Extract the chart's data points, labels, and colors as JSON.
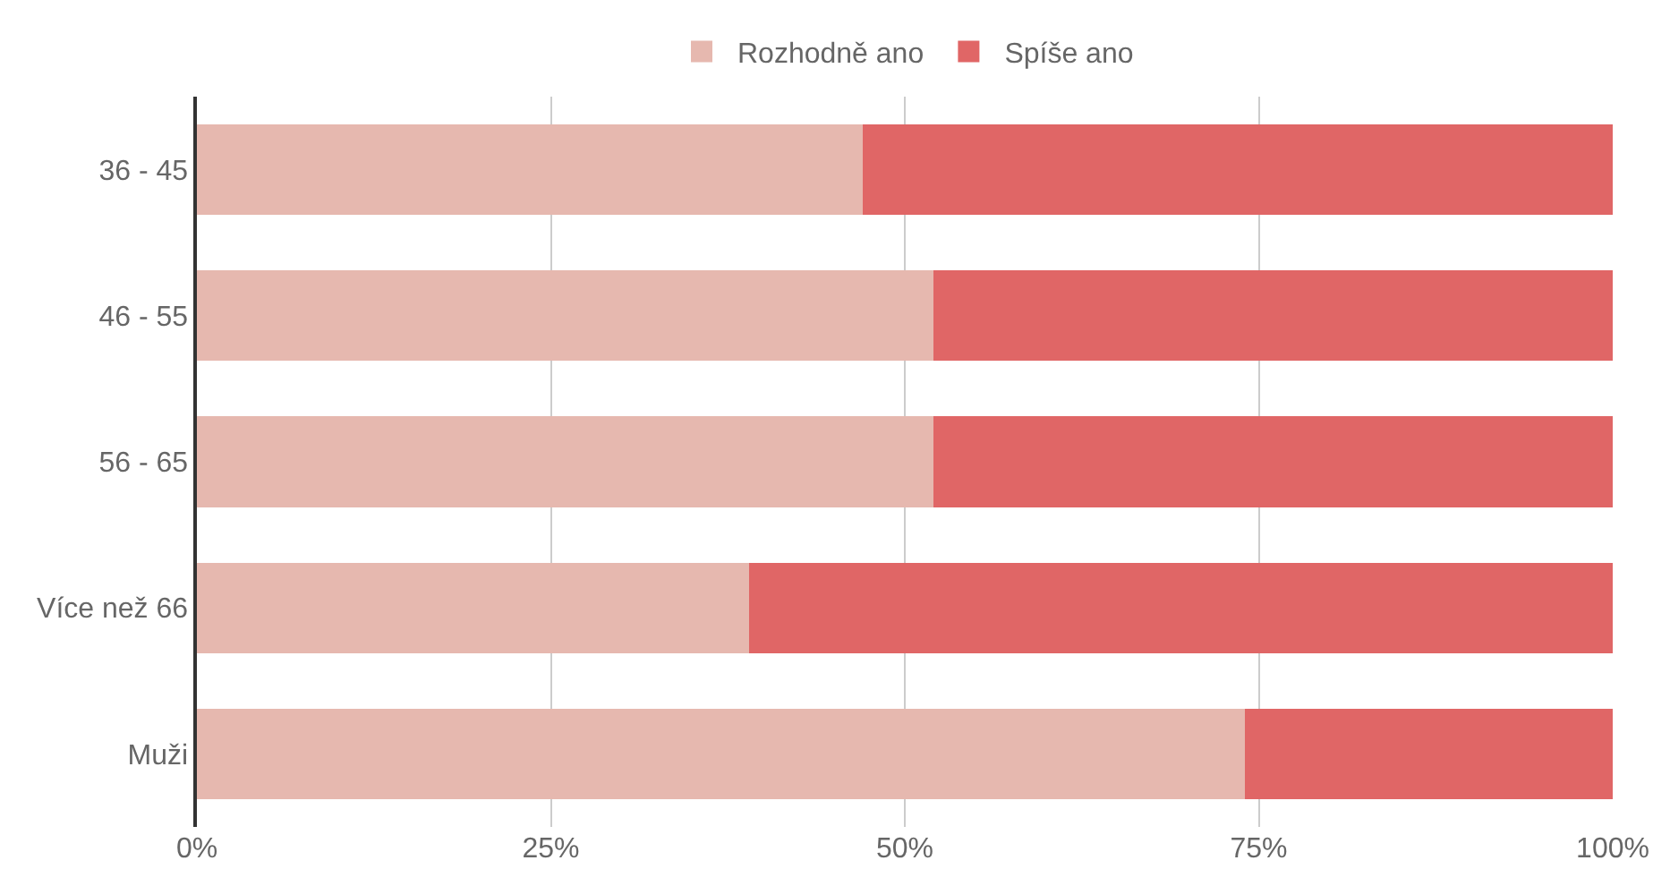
{
  "chart_data": {
    "type": "bar",
    "orientation": "horizontal",
    "stacked": true,
    "categories": [
      "36 - 45",
      "46 - 55",
      "56 - 65",
      "Více než 66",
      "Muži"
    ],
    "series": [
      {
        "name": "Rozhodně ano",
        "color": "#e6b8af",
        "values": [
          47,
          52,
          52,
          39,
          74
        ]
      },
      {
        "name": "Spíše ano",
        "color": "#e06666",
        "values": [
          53,
          48,
          48,
          61,
          26
        ]
      }
    ],
    "xlim": [
      0,
      100
    ],
    "xticks": [
      {
        "value": 0,
        "label": "0%"
      },
      {
        "value": 25,
        "label": "25%"
      },
      {
        "value": 50,
        "label": "50%"
      },
      {
        "value": 75,
        "label": "75%"
      },
      {
        "value": 100,
        "label": "100%"
      }
    ],
    "grid": "x",
    "legend": "top"
  }
}
